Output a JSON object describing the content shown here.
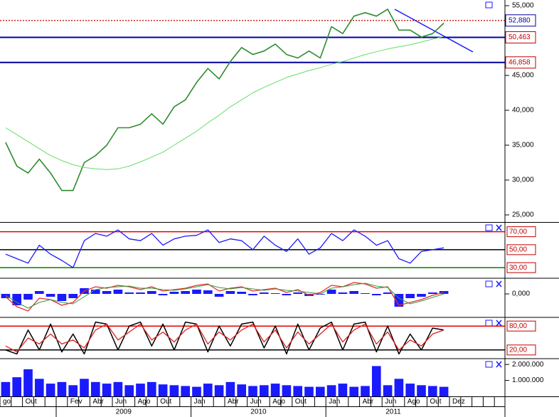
{
  "time_axis": {
    "months": [
      "go",
      null,
      "Out",
      null,
      null,
      null,
      "Fev",
      null,
      "Abr",
      null,
      "Jun",
      null,
      "Ago",
      null,
      "Out",
      null,
      null,
      "Jan",
      null,
      null,
      "Abr",
      null,
      "Jun",
      null,
      "Ago",
      null,
      "Out",
      null,
      null,
      "Jan",
      null,
      null,
      "Abr",
      null,
      "Jun",
      null,
      "Ago",
      null,
      "Out",
      null,
      "Dez",
      null,
      null,
      null,
      null
    ],
    "years": [
      "2009",
      "2010",
      "2011"
    ]
  },
  "chart_data": [
    {
      "type": "line",
      "ylim": [
        23980,
        55816
      ],
      "yticks": [
        {
          "value": 25000,
          "label": "25,000"
        },
        {
          "value": 30000,
          "label": "30,000"
        },
        {
          "value": 35000,
          "label": "35,000"
        },
        {
          "value": 40000,
          "label": "40,000"
        },
        {
          "value": 45000,
          "label": "45,000"
        },
        {
          "value": 50000,
          "label": "50,000"
        },
        {
          "value": 55000,
          "label": "55,000"
        }
      ],
      "hlines": [
        {
          "value": 52880,
          "label": "52,880",
          "color": "#c00000",
          "label_color": "#0000a0",
          "dotted": true
        },
        {
          "value": 50463,
          "label": "50,463",
          "color": "#0000a0",
          "label_color": "#c00000",
          "dotted": false
        },
        {
          "value": 46858,
          "label": "46,858",
          "color": "#0000a0",
          "label_color": "#c00000",
          "dotted": false
        }
      ],
      "series": [
        {
          "color": "#2e8b2e",
          "width": 1.6,
          "values": [
            35400,
            32000,
            31000,
            33000,
            31000,
            28500,
            28500,
            32500,
            33500,
            35000,
            37500,
            37500,
            38000,
            39500,
            38000,
            40500,
            41500,
            44000,
            46000,
            44500,
            47000,
            49000,
            48000,
            48500,
            49500,
            48000,
            47500,
            48500,
            47500,
            52000,
            51000,
            53500,
            54000,
            53500,
            54500,
            51500,
            51500,
            50500,
            51000,
            52500,
            null,
            null,
            null,
            null,
            null
          ]
        },
        {
          "color": "#66dd66",
          "width": 1,
          "values": [
            37500,
            36500,
            35500,
            34500,
            33500,
            32800,
            32200,
            31800,
            31600,
            31500,
            31600,
            32000,
            32600,
            33300,
            34000,
            35000,
            36000,
            37000,
            38200,
            39300,
            40500,
            41500,
            42500,
            43300,
            44000,
            44700,
            45200,
            45700,
            46100,
            46600,
            47000,
            47500,
            48000,
            48400,
            48800,
            49100,
            49400,
            49800,
            50200,
            50600,
            null,
            null,
            null,
            null,
            null
          ]
        }
      ]
    },
    {
      "type": "line",
      "ylim": [
        19,
        80
      ],
      "yticks": [
        {
          "value": 70,
          "label": "70,00",
          "color": "#e00000"
        },
        {
          "value": 50,
          "label": "50,00",
          "color": "#000000"
        },
        {
          "value": 30,
          "label": "30,00",
          "color": "#008000"
        }
      ],
      "series": [
        {
          "color": "#1a1aff",
          "width": 1.3,
          "values": [
            45,
            40,
            35,
            55,
            45,
            38,
            30,
            60,
            68,
            65,
            72,
            62,
            60,
            68,
            55,
            62,
            65,
            66,
            72,
            58,
            62,
            60,
            50,
            65,
            55,
            48,
            62,
            45,
            52,
            68,
            60,
            72,
            65,
            55,
            60,
            40,
            35,
            48,
            50,
            52,
            null,
            null,
            null,
            null,
            null
          ]
        }
      ]
    },
    {
      "type": "line",
      "ylim": [
        -1600,
        1050
      ],
      "yticks": [
        {
          "value": 0,
          "label": "0,000"
        }
      ],
      "series": [
        {
          "type": "bar",
          "color": "#1a1aff",
          "values": [
            -300,
            -800,
            -400,
            200,
            -200,
            -500,
            -300,
            400,
            300,
            200,
            300,
            100,
            100,
            200,
            -100,
            150,
            200,
            300,
            250,
            -200,
            200,
            150,
            -100,
            100,
            50,
            -100,
            100,
            -150,
            -50,
            300,
            100,
            200,
            50,
            -100,
            100,
            -900,
            -300,
            -200,
            100,
            200,
            null,
            null,
            null,
            null,
            null
          ]
        },
        {
          "color": "#e03030",
          "width": 1.3,
          "values": [
            -200,
            -900,
            -1200,
            -300,
            -400,
            -800,
            -600,
            200,
            500,
            400,
            600,
            500,
            300,
            500,
            200,
            300,
            400,
            600,
            700,
            200,
            400,
            500,
            200,
            300,
            400,
            100,
            300,
            -100,
            100,
            600,
            500,
            800,
            700,
            400,
            500,
            -800,
            -600,
            -400,
            -100,
            100,
            null,
            null,
            null,
            null,
            null
          ]
        },
        {
          "color": "#3a9a3a",
          "width": 1,
          "values": [
            -100,
            -600,
            -1000,
            -600,
            -400,
            -600,
            -700,
            -200,
            300,
            450,
            500,
            550,
            400,
            400,
            300,
            250,
            350,
            500,
            650,
            450,
            350,
            450,
            350,
            250,
            350,
            250,
            200,
            100,
            0,
            400,
            500,
            650,
            750,
            550,
            450,
            -300,
            -700,
            -500,
            -250,
            0,
            null,
            null,
            null,
            null,
            null
          ]
        }
      ]
    },
    {
      "type": "line",
      "ylim": [
        0,
        100
      ],
      "yticks": [
        {
          "value": 80,
          "label": "80,00",
          "color": "#e00000"
        },
        {
          "value": 20,
          "label": "20,00",
          "color": "#000000"
        }
      ],
      "series": [
        {
          "color": "#000000",
          "width": 1.5,
          "values": [
            20,
            10,
            70,
            20,
            85,
            15,
            60,
            10,
            90,
            85,
            20,
            80,
            90,
            30,
            85,
            20,
            90,
            85,
            15,
            80,
            30,
            85,
            90,
            25,
            80,
            10,
            85,
            20,
            75,
            90,
            20,
            85,
            90,
            15,
            80,
            10,
            60,
            20,
            75,
            70,
            null,
            null,
            null,
            null,
            null
          ]
        },
        {
          "color": "#e02020",
          "width": 1.3,
          "values": [
            30,
            15,
            50,
            35,
            60,
            35,
            45,
            25,
            70,
            85,
            45,
            65,
            85,
            45,
            65,
            40,
            70,
            85,
            35,
            65,
            45,
            70,
            85,
            40,
            70,
            25,
            65,
            35,
            60,
            85,
            40,
            70,
            85,
            35,
            65,
            20,
            45,
            30,
            60,
            70,
            null,
            null,
            null,
            null,
            null
          ]
        }
      ]
    },
    {
      "type": "bar",
      "ylim": [
        0,
        2320000
      ],
      "yticks": [
        {
          "value": 2000000,
          "label": "2.000.000"
        },
        {
          "value": 1000000,
          "label": "1.000.000"
        }
      ],
      "series": [
        {
          "color": "#1a1aff",
          "values": [
            900000,
            1200000,
            1700000,
            1100000,
            800000,
            900000,
            700000,
            1100000,
            900000,
            800000,
            900000,
            700000,
            800000,
            900000,
            750000,
            700000,
            650000,
            600000,
            800000,
            700000,
            900000,
            750000,
            650000,
            700000,
            800000,
            700000,
            650000,
            600000,
            600000,
            700000,
            800000,
            600000,
            650000,
            1900000,
            700000,
            1100000,
            800000,
            700000,
            650000,
            600000,
            null,
            null,
            null,
            null,
            null
          ]
        }
      ]
    }
  ]
}
